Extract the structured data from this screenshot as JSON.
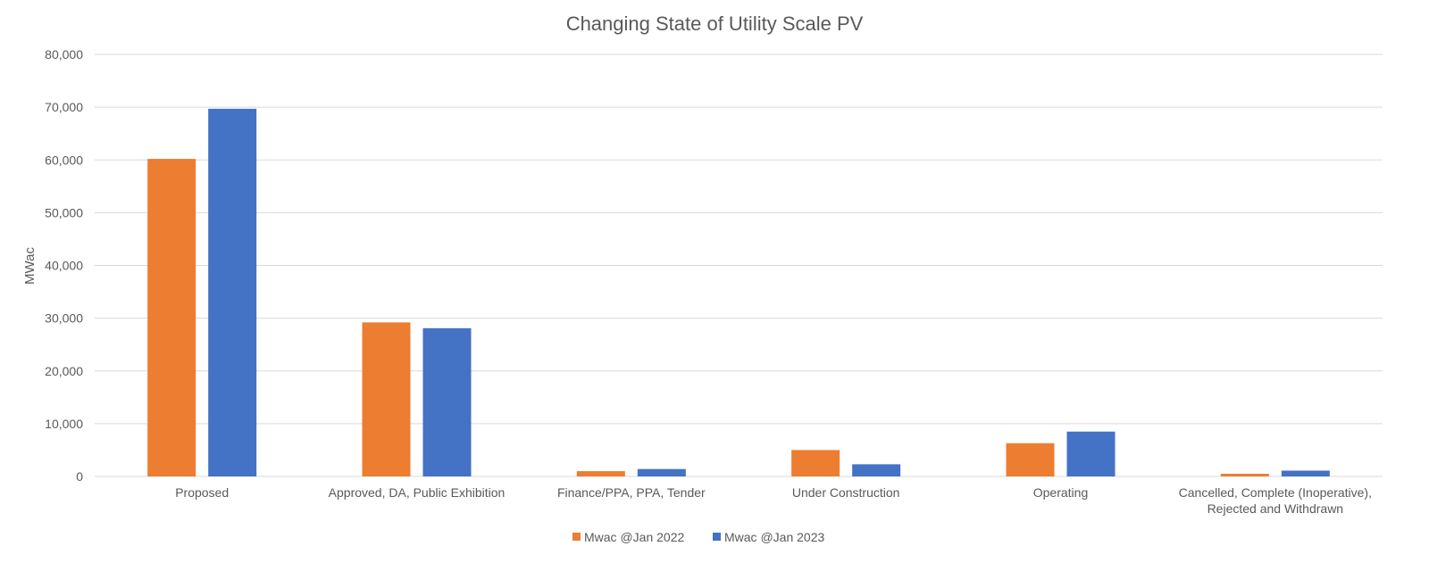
{
  "chart_data": {
    "type": "bar",
    "title": "Changing State of Utility Scale PV",
    "ylabel": "MWac",
    "xlabel": "",
    "ylim": [
      0,
      80000
    ],
    "yticks": [
      "0",
      "10,000",
      "20,000",
      "30,000",
      "40,000",
      "50,000",
      "60,000",
      "70,000",
      "80,000"
    ],
    "grid": true,
    "legend_position": "bottom",
    "categories": [
      [
        "Proposed"
      ],
      [
        "Approved, DA, Public Exhibition"
      ],
      [
        "Finance/PPA, PPA, Tender"
      ],
      [
        "Under Construction"
      ],
      [
        "Operating"
      ],
      [
        "Cancelled, Complete (Inoperative),",
        "Rejected and Withdrawn"
      ]
    ],
    "series": [
      {
        "name": "Mwac @Jan 2022",
        "color": "#ed7d31",
        "values": [
          60200,
          29200,
          1000,
          5000,
          6300,
          500
        ]
      },
      {
        "name": "Mwac @Jan 2023",
        "color": "#4472c4",
        "values": [
          69700,
          28100,
          1400,
          2300,
          8500,
          1100
        ]
      }
    ]
  }
}
